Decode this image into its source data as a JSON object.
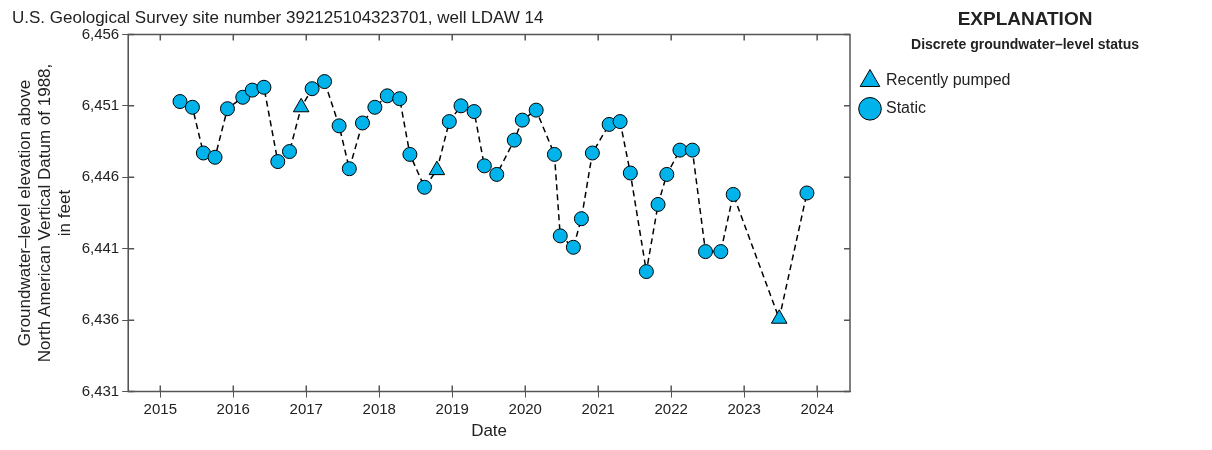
{
  "chart_data": {
    "type": "scatter",
    "title": "U.S. Geological Survey site number 392125104323701, well LDAW 14",
    "xlabel": "Date",
    "ylabel": "Groundwater–level elevation above North American Vertical Datum of 1988, in feet",
    "legend_title": "Discrete groundwater–level status",
    "annotations": [
      "EXPLANATION"
    ],
    "xlim": [
      2014.56,
      2024.45
    ],
    "xticks": [
      2015,
      2016,
      2017,
      2018,
      2019,
      2020,
      2021,
      2022,
      2023,
      2024
    ],
    "ylim": [
      6431,
      6456
    ],
    "yticks": [
      {
        "value": 6431,
        "label": "6,431"
      },
      {
        "value": 6436,
        "label": "6,436"
      },
      {
        "value": 6441,
        "label": "6,441"
      },
      {
        "value": 6446,
        "label": "6,446"
      },
      {
        "value": 6451,
        "label": "6,451"
      },
      {
        "value": 6456,
        "label": "6,456"
      }
    ],
    "grid": false,
    "legend": "right",
    "series": [
      {
        "type": "line",
        "color": "#000000",
        "line_style": "dashed",
        "marker": "none",
        "x": [
          2015.27,
          2015.44,
          2015.59,
          2015.75,
          2015.92,
          2016.13,
          2016.26,
          2016.42,
          2016.61,
          2016.77,
          2016.93,
          2017.08,
          2017.25,
          2017.45,
          2017.59,
          2017.77,
          2017.94,
          2018.11,
          2018.28,
          2018.42,
          2018.62,
          2018.79,
          2018.96,
          2019.12,
          2019.3,
          2019.44,
          2019.61,
          2019.85,
          2019.96,
          2020.15,
          2020.4,
          2020.48,
          2020.66,
          2020.77,
          2020.92,
          2021.15,
          2021.3,
          2021.44,
          2021.66,
          2021.82,
          2021.94,
          2022.12,
          2022.29,
          2022.47,
          2022.68,
          2022.85,
          2023.48,
          2023.86
        ],
        "values": [
          6451.3,
          6450.9,
          6447.7,
          6447.4,
          6450.8,
          6451.6,
          6452.1,
          6452.3,
          6447.1,
          6447.8,
          6450.9,
          6452.2,
          6452.7,
          6449.6,
          6446.6,
          6449.8,
          6450.9,
          6451.7,
          6451.5,
          6447.6,
          6445.3,
          6446.5,
          6449.9,
          6451.0,
          6450.6,
          6446.8,
          6446.2,
          6448.6,
          6450.0,
          6450.7,
          6447.6,
          6441.9,
          6441.1,
          6443.1,
          6447.7,
          6449.7,
          6449.9,
          6446.3,
          6439.4,
          6444.1,
          6446.2,
          6447.9,
          6447.9,
          6440.8,
          6440.8,
          6444.8,
          6436.1,
          6444.9
        ]
      },
      {
        "name": "Recently pumped",
        "color": "#00b4eb",
        "marker": "triangle",
        "x": [
          2016.93,
          2018.79,
          2023.48
        ],
        "values": [
          6450.9,
          6446.5,
          6436.1
        ]
      },
      {
        "name": "Static",
        "color": "#00b4eb",
        "marker": "circle",
        "x": [
          2015.27,
          2015.44,
          2015.59,
          2015.75,
          2015.92,
          2016.13,
          2016.26,
          2016.42,
          2016.61,
          2016.77,
          2017.08,
          2017.25,
          2017.45,
          2017.59,
          2017.77,
          2017.94,
          2018.11,
          2018.28,
          2018.42,
          2018.62,
          2018.96,
          2019.12,
          2019.3,
          2019.44,
          2019.61,
          2019.85,
          2019.96,
          2020.15,
          2020.4,
          2020.48,
          2020.66,
          2020.77,
          2020.92,
          2021.15,
          2021.3,
          2021.44,
          2021.66,
          2021.82,
          2021.94,
          2022.12,
          2022.29,
          2022.47,
          2022.68,
          2022.85,
          2023.86
        ],
        "values": [
          6451.3,
          6450.9,
          6447.7,
          6447.4,
          6450.8,
          6451.6,
          6452.1,
          6452.3,
          6447.1,
          6447.8,
          6452.2,
          6452.7,
          6449.6,
          6446.6,
          6449.8,
          6450.9,
          6451.7,
          6451.5,
          6447.6,
          6445.3,
          6449.9,
          6451.0,
          6450.6,
          6446.8,
          6446.2,
          6448.6,
          6450.0,
          6450.7,
          6447.6,
          6441.9,
          6441.1,
          6443.1,
          6447.7,
          6449.7,
          6449.9,
          6446.3,
          6439.4,
          6444.1,
          6446.2,
          6447.9,
          6447.9,
          6440.8,
          6440.8,
          6444.8,
          6444.9
        ]
      }
    ]
  }
}
